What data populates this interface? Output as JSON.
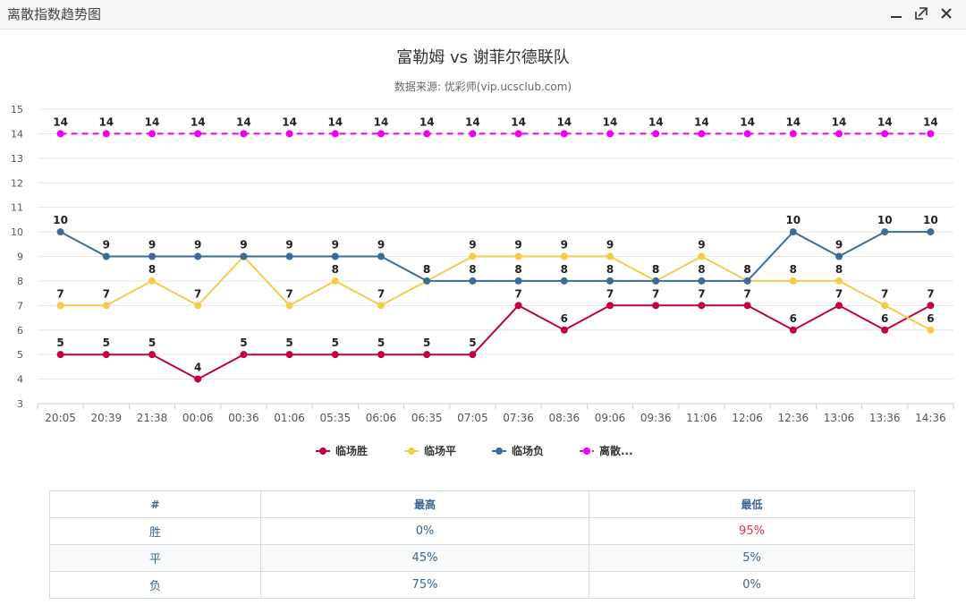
{
  "window": {
    "title": "离散指数趋势图"
  },
  "colors": {
    "win": "#c2003f",
    "draw": "#f5cc4a",
    "lose": "#3d6a96",
    "dispersion": "#ee00ee",
    "min_red": "#e8304a"
  },
  "chart_data": {
    "type": "line",
    "title": "富勒姆 vs 谢菲尔德联队",
    "subtitle": "数据来源: 优彩师(vip.ucsclub.com)",
    "x": [
      "20:05",
      "20:39",
      "21:38",
      "00:06",
      "00:36",
      "01:06",
      "05:35",
      "06:06",
      "06:35",
      "07:05",
      "07:36",
      "08:36",
      "09:06",
      "09:36",
      "11:06",
      "12:06",
      "12:36",
      "13:06",
      "13:36",
      "14:36"
    ],
    "ylim": [
      3,
      15
    ],
    "yticks": [
      3,
      4,
      5,
      6,
      7,
      8,
      9,
      10,
      11,
      12,
      13,
      14,
      15
    ],
    "legend_position": "bottom-center",
    "series": [
      {
        "name": "临场胜",
        "legend": "临场胜",
        "color": "#c2003f",
        "dashed": false,
        "values": [
          5,
          5,
          5,
          4,
          5,
          5,
          5,
          5,
          5,
          5,
          7,
          6,
          7,
          7,
          7,
          7,
          6,
          7,
          6,
          7
        ]
      },
      {
        "name": "临场平",
        "legend": "临场平",
        "color": "#f5cc4a",
        "dashed": false,
        "values": [
          7,
          7,
          8,
          7,
          9,
          7,
          8,
          7,
          8,
          9,
          9,
          9,
          9,
          8,
          9,
          8,
          8,
          8,
          7,
          6
        ]
      },
      {
        "name": "临场负",
        "legend": "临场负",
        "color": "#3d6a96",
        "dashed": false,
        "values": [
          10,
          9,
          9,
          9,
          9,
          9,
          9,
          9,
          8,
          8,
          8,
          8,
          8,
          8,
          8,
          8,
          10,
          9,
          10,
          10
        ]
      },
      {
        "name": "离散指数",
        "legend": "离散...",
        "color": "#ee00ee",
        "dashed": true,
        "values": [
          14,
          14,
          14,
          14,
          14,
          14,
          14,
          14,
          14,
          14,
          14,
          14,
          14,
          14,
          14,
          14,
          14,
          14,
          14,
          14
        ]
      }
    ]
  },
  "table": {
    "headers": [
      "#",
      "最高",
      "最低"
    ],
    "rows": [
      {
        "label": "胜",
        "high": "0%",
        "low": "95%",
        "low_red": true
      },
      {
        "label": "平",
        "high": "45%",
        "low": "5%",
        "low_red": false
      },
      {
        "label": "负",
        "high": "75%",
        "low": "0%",
        "low_red": false
      }
    ]
  }
}
